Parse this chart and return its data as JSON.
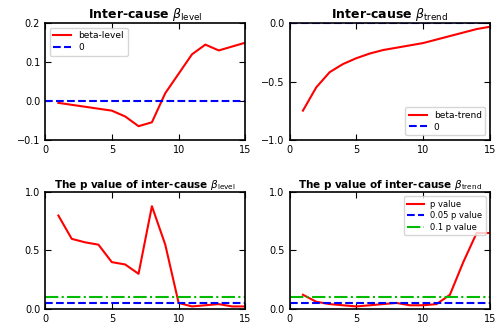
{
  "title_level": "Inter-cause $\\beta_{\\mathrm{level}}$",
  "title_trend": "Inter-cause $\\beta_{\\mathrm{trend}}$",
  "title_p_level": "The p value of inter-cause $\\beta_{\\mathrm{level}}$",
  "title_p_trend": "The p value of inter-cause $\\beta_{\\mathrm{trend}}$",
  "x": [
    1,
    2,
    3,
    4,
    5,
    6,
    7,
    8,
    9,
    10,
    11,
    12,
    13,
    14,
    15
  ],
  "beta_level": [
    -0.005,
    -0.01,
    -0.015,
    -0.02,
    -0.025,
    -0.04,
    -0.065,
    -0.055,
    0.02,
    0.07,
    0.12,
    0.145,
    0.13,
    0.14,
    0.15
  ],
  "beta_trend": [
    -0.75,
    -0.55,
    -0.42,
    -0.35,
    -0.3,
    -0.26,
    -0.23,
    -0.21,
    -0.19,
    -0.17,
    -0.14,
    -0.11,
    -0.08,
    -0.05,
    -0.03
  ],
  "p_level": [
    0.8,
    0.6,
    0.57,
    0.55,
    0.4,
    0.38,
    0.3,
    0.88,
    0.55,
    0.05,
    0.02,
    0.03,
    0.04,
    0.02,
    0.02
  ],
  "p_trend": [
    0.12,
    0.06,
    0.04,
    0.03,
    0.02,
    0.03,
    0.04,
    0.05,
    0.03,
    0.03,
    0.04,
    0.12,
    0.4,
    0.65,
    0.65
  ],
  "color_red": "#ff0000",
  "color_blue": "#0000ff",
  "color_green": "#00bb00",
  "p05": 0.05,
  "p10": 0.1,
  "xlim": [
    0,
    15
  ],
  "ylim_level": [
    -0.1,
    0.2
  ],
  "ylim_trend": [
    -1.0,
    0.0
  ],
  "ylim_p": [
    0,
    1
  ]
}
